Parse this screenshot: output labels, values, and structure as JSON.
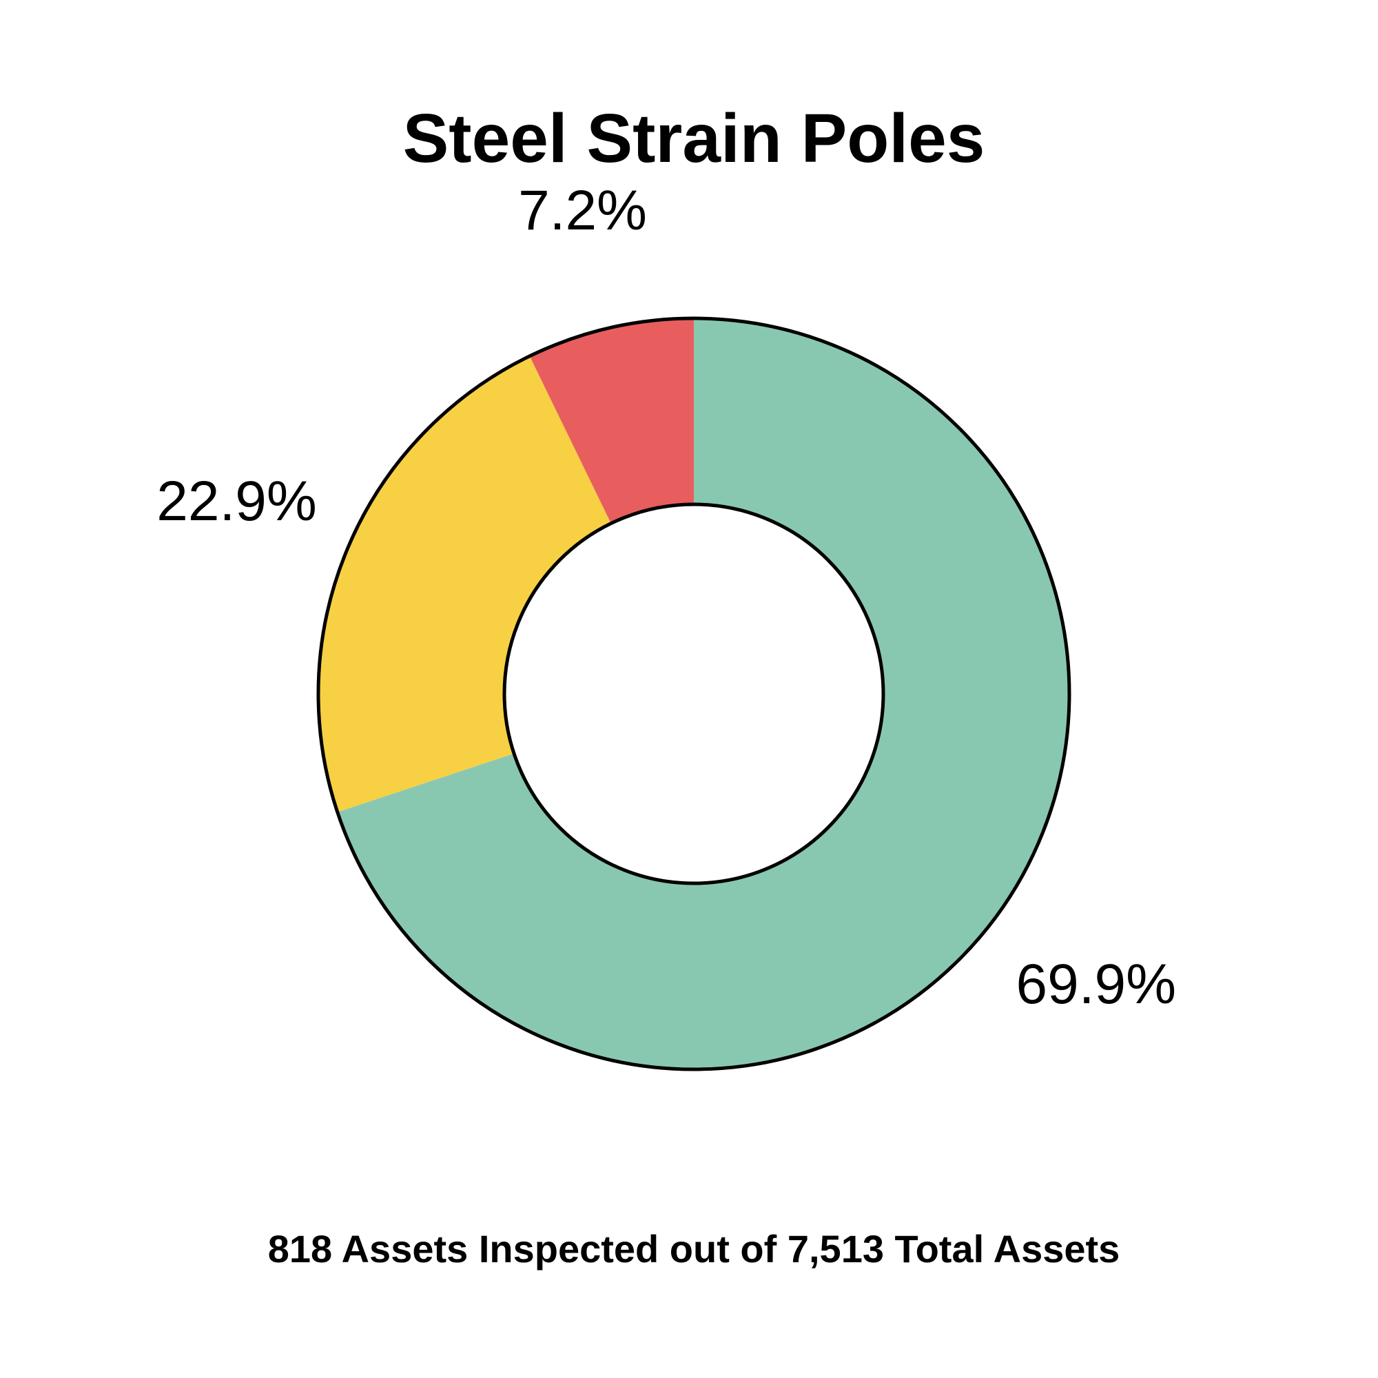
{
  "chart_data": {
    "type": "pie",
    "variant": "donut",
    "title": "Steel Strain Poles",
    "footnote": "818 Assets Inspected out of 7,513 Total Assets",
    "slices": [
      {
        "value": 69.9,
        "label": "69.9%",
        "color": "#88c8b0"
      },
      {
        "value": 22.9,
        "label": "22.9%",
        "color": "#f8d044"
      },
      {
        "value": 7.2,
        "label": "7.2%",
        "color": "#e85e5e"
      }
    ],
    "start_angle": "12 o'clock",
    "direction": "clockwise",
    "legend": "none",
    "outline_color": "#000000"
  }
}
